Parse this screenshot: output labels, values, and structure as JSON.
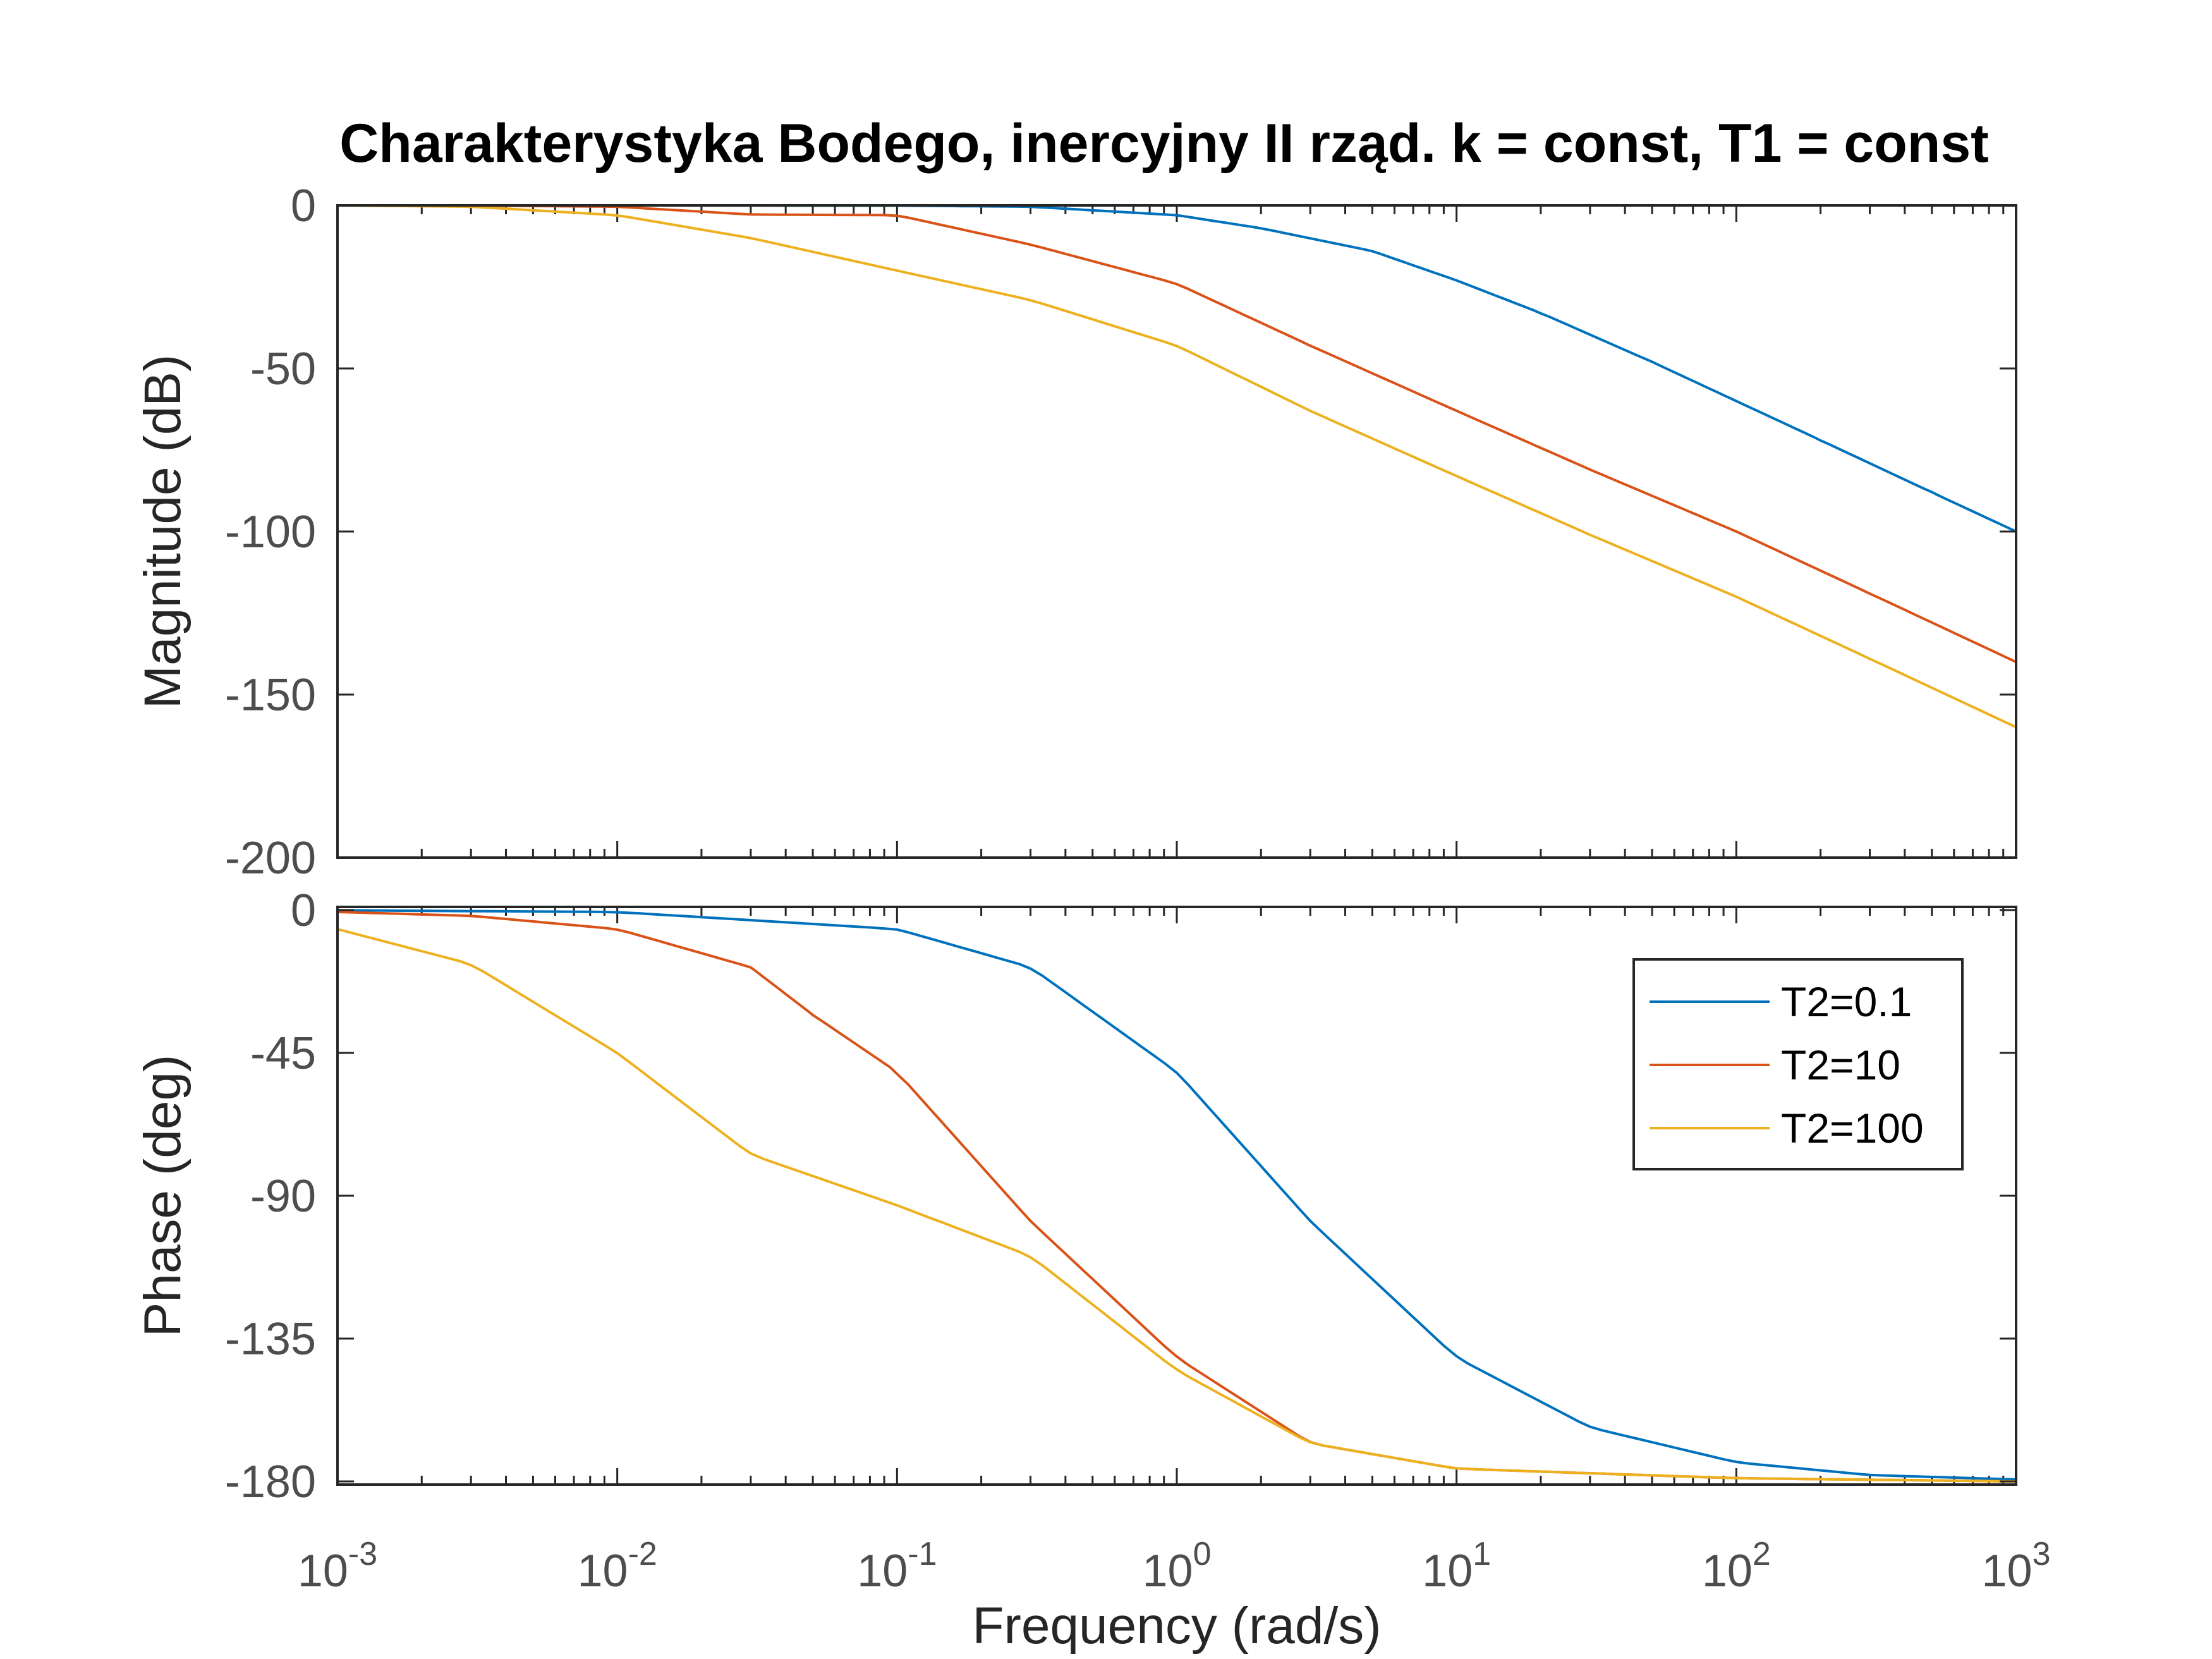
{
  "chart_data": {
    "type": "line",
    "title": "Charakterystyka Bodego, inercyjny II rząd. k = const, T1 = const",
    "xlabel": "Frequency  (rad/s)",
    "xscale": "log",
    "xlim": [
      0.001,
      1000
    ],
    "x_tick_exponents": [
      "-3",
      "-2",
      "-1",
      "0",
      "1",
      "2",
      "3"
    ],
    "x_tick_base": "10",
    "colors": {
      "axes": "#262626",
      "tick_labels": "#4d4d4d",
      "T2=0.1": "#0072BD",
      "T2=10": "#D95319",
      "T2=100": "#EDB120"
    },
    "subplots": [
      {
        "id": "magnitude",
        "ylabel": "Magnitude (dB)",
        "ylim": [
          -200,
          0
        ],
        "yticks": [
          "0",
          "-50",
          "-100",
          "-150",
          "-200"
        ],
        "series": [
          {
            "name": "T2=0.1",
            "x": [
              0.001,
              0.01,
              0.1,
              0.3,
              1,
              2,
              5,
              10,
              20,
              50,
              100,
              200,
              500,
              1000
            ],
            "y": [
              0,
              0,
              -0.05,
              -0.4,
              -3,
              -7,
              -14,
              -23,
              -33,
              -48,
              -60,
              -72,
              -88,
              -100
            ]
          },
          {
            "name": "T2=10",
            "x": [
              0.001,
              0.003,
              0.01,
              0.03,
              0.1,
              0.3,
              1,
              3,
              10,
              30,
              100,
              300,
              1000
            ],
            "y": [
              0,
              -0.04,
              -0.4,
              -2.8,
              -3,
              -12,
              -24,
              -43,
              -63,
              -81,
              -100,
              -119,
              -140
            ]
          },
          {
            "name": "T2=100",
            "x": [
              0.001,
              0.003,
              0.01,
              0.03,
              0.1,
              0.3,
              1,
              3,
              10,
              30,
              100,
              300,
              1000
            ],
            "y": [
              0,
              -0.4,
              -3,
              -10,
              -20,
              -29,
              -43,
              -63,
              -83,
              -101,
              -120,
              -139,
              -160
            ]
          }
        ]
      },
      {
        "id": "phase",
        "ylabel": "Phase (deg)",
        "ylim": [
          -181,
          1
        ],
        "yticks": [
          "0",
          "-45",
          "-90",
          "-135",
          "-180"
        ],
        "series": [
          {
            "name": "T2=0.1",
            "x": [
              0.001,
              0.01,
              0.1,
              0.3,
              1,
              3,
              10,
              30,
              100,
              300,
              1000
            ],
            "y": [
              -0.06,
              -0.6,
              -6,
              -18,
              -51,
              -98,
              -141,
              -163,
              -174,
              -178,
              -179.4
            ]
          },
          {
            "name": "T2=10",
            "x": [
              0.001,
              0.003,
              0.01,
              0.03,
              0.05,
              0.1,
              0.3,
              1,
              3,
              10,
              100,
              1000
            ],
            "y": [
              -0.6,
              -1.8,
              -6,
              -18,
              -33,
              -51,
              -98,
              -141,
              -168,
              -176,
              -179,
              -180
            ]
          },
          {
            "name": "T2=100",
            "x": [
              0.001,
              0.003,
              0.01,
              0.03,
              0.1,
              0.3,
              1,
              3,
              10,
              100,
              1000
            ],
            "y": [
              -6,
              -17,
              -45,
              -77,
              -93,
              -109,
              -145,
              -168,
              -176,
              -179,
              -180
            ]
          }
        ]
      }
    ],
    "legend": {
      "placement": "top-right of lower plot",
      "entries": [
        "T2=0.1",
        "T2=10",
        "T2=100"
      ]
    }
  }
}
